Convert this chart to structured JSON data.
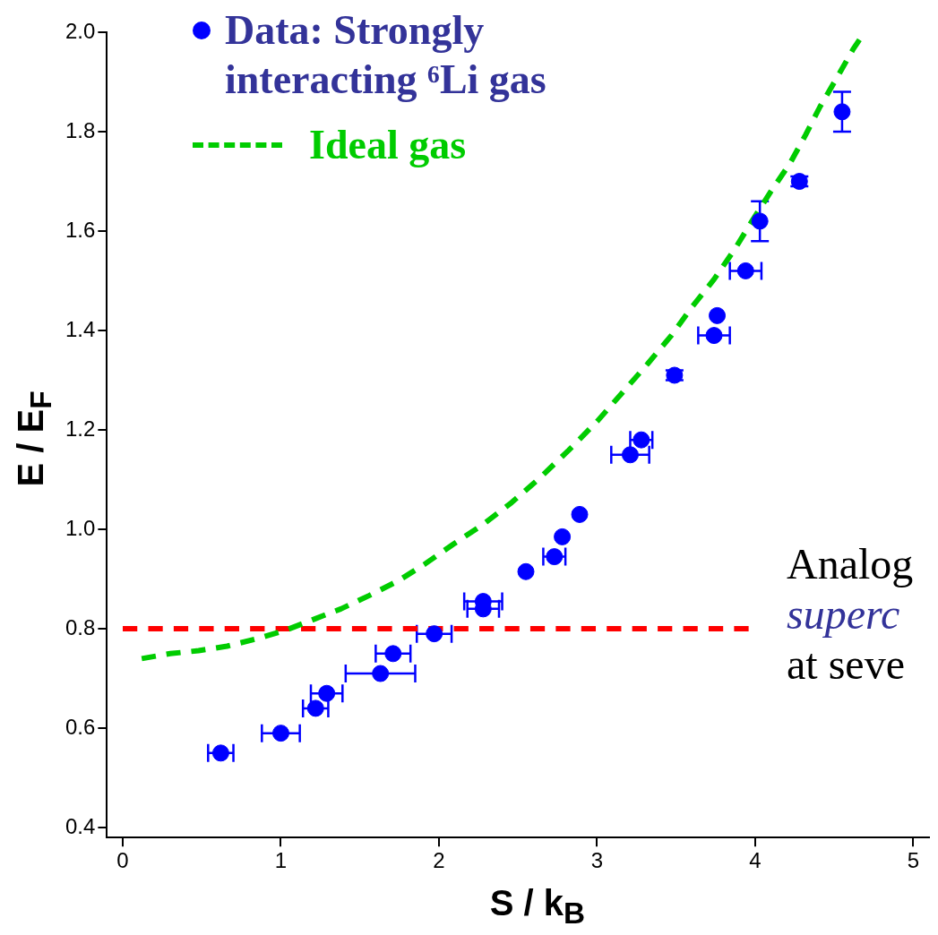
{
  "chart_data": {
    "type": "scatter",
    "xlabel": "S / k$_{B}$",
    "ylabel": "E / E$_{F}$",
    "xlim": [
      -0.1,
      5.1
    ],
    "xticks": [
      0,
      1,
      2,
      3,
      4,
      5
    ],
    "ylim": [
      0.38,
      2.0
    ],
    "yticks": [
      0.4,
      0.6,
      0.8,
      {
        "value": 1,
        "label": "1.0"
      },
      1.2,
      1.4,
      1.6,
      1.8,
      {
        "value": 2,
        "label": "2.0"
      }
    ],
    "grid": false,
    "legend": "top left",
    "marker": "circle",
    "series": [
      {
        "name": "Data: Strongly interacting ⁶Li gas",
        "color": "#0000ff",
        "x": [
          0.62,
          1.0,
          1.22,
          1.29,
          1.63,
          1.71,
          1.97,
          2.28,
          2.28,
          2.55,
          2.73,
          2.78,
          2.89,
          3.21,
          3.28,
          3.49,
          3.74,
          3.76,
          3.94,
          4.03,
          4.28,
          4.55
        ],
        "values": [
          0.55,
          0.59,
          0.64,
          0.67,
          0.71,
          0.75,
          0.79,
          0.855,
          0.84,
          0.915,
          0.945,
          0.985,
          1.03,
          1.15,
          1.18,
          1.31,
          1.39,
          1.43,
          1.52,
          1.62,
          1.7,
          1.84
        ],
        "xerrors": [
          0.08,
          0.12,
          0.08,
          0.1,
          0.22,
          0.11,
          0.11,
          0.12,
          0.1,
          null,
          0.07,
          null,
          null,
          0.12,
          0.07,
          null,
          0.1,
          null,
          0.1,
          null,
          null,
          null
        ],
        "errors": [
          null,
          null,
          null,
          null,
          null,
          null,
          null,
          null,
          null,
          null,
          null,
          null,
          null,
          null,
          null,
          0.01,
          null,
          null,
          null,
          0.04,
          0.01,
          0.04
        ]
      },
      {
        "name": "Ideal gas",
        "type": "line",
        "color": "#00cc00",
        "line_style": "dashed",
        "marker": "none",
        "x": [
          0.12,
          0.3,
          0.48,
          0.66,
          0.85,
          1.03,
          1.2,
          1.38,
          1.56,
          1.74,
          1.91,
          2.09,
          2.28,
          2.46,
          2.64,
          2.82,
          3.0,
          3.16,
          3.32,
          3.47,
          3.6,
          3.74,
          3.87,
          3.98,
          4.1,
          4.22,
          4.32,
          4.41,
          4.52,
          4.62,
          4.66
        ],
        "values": [
          0.74,
          0.75,
          0.756,
          0.765,
          0.78,
          0.797,
          0.818,
          0.84,
          0.867,
          0.896,
          0.93,
          0.97,
          1.01,
          1.054,
          1.104,
          1.159,
          1.217,
          1.275,
          1.333,
          1.39,
          1.447,
          1.503,
          1.563,
          1.62,
          1.68,
          1.736,
          1.794,
          1.85,
          1.91,
          1.966,
          1.985
        ]
      },
      {
        "type": "line",
        "color": "#ff0000",
        "line_style": "dashed",
        "marker": "none",
        "x": [
          0,
          3.96
        ],
        "values": [
          0.8,
          0.8
        ]
      }
    ],
    "annotations": [
      "Analog",
      "superc",
      "at seve"
    ]
  }
}
